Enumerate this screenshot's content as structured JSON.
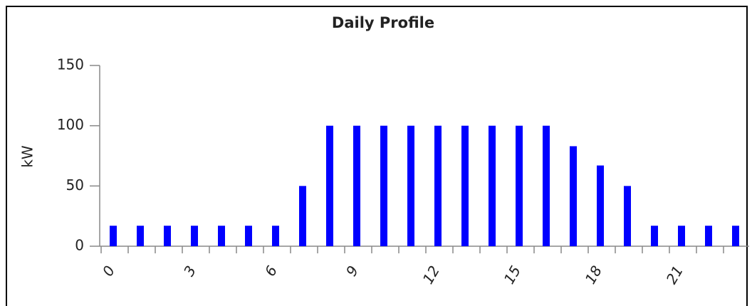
{
  "chart_data": {
    "type": "bar",
    "title": "Daily Profile",
    "y_label": "kW",
    "categories": [
      "0",
      null,
      null,
      "3",
      null,
      null,
      "6",
      null,
      null,
      "9",
      null,
      null,
      "12",
      null,
      null,
      "15",
      null,
      null,
      "18",
      null,
      null,
      "21",
      null,
      null
    ],
    "values": [
      17,
      17,
      17,
      17,
      17,
      17,
      17,
      50,
      100,
      100,
      100,
      100,
      100,
      100,
      100,
      100,
      100,
      83,
      67,
      50,
      17,
      17,
      17,
      17
    ],
    "color": "#0000ff",
    "ylim": [
      0,
      150
    ],
    "yticks": [
      0,
      50,
      100,
      150
    ],
    "grid": false
  }
}
